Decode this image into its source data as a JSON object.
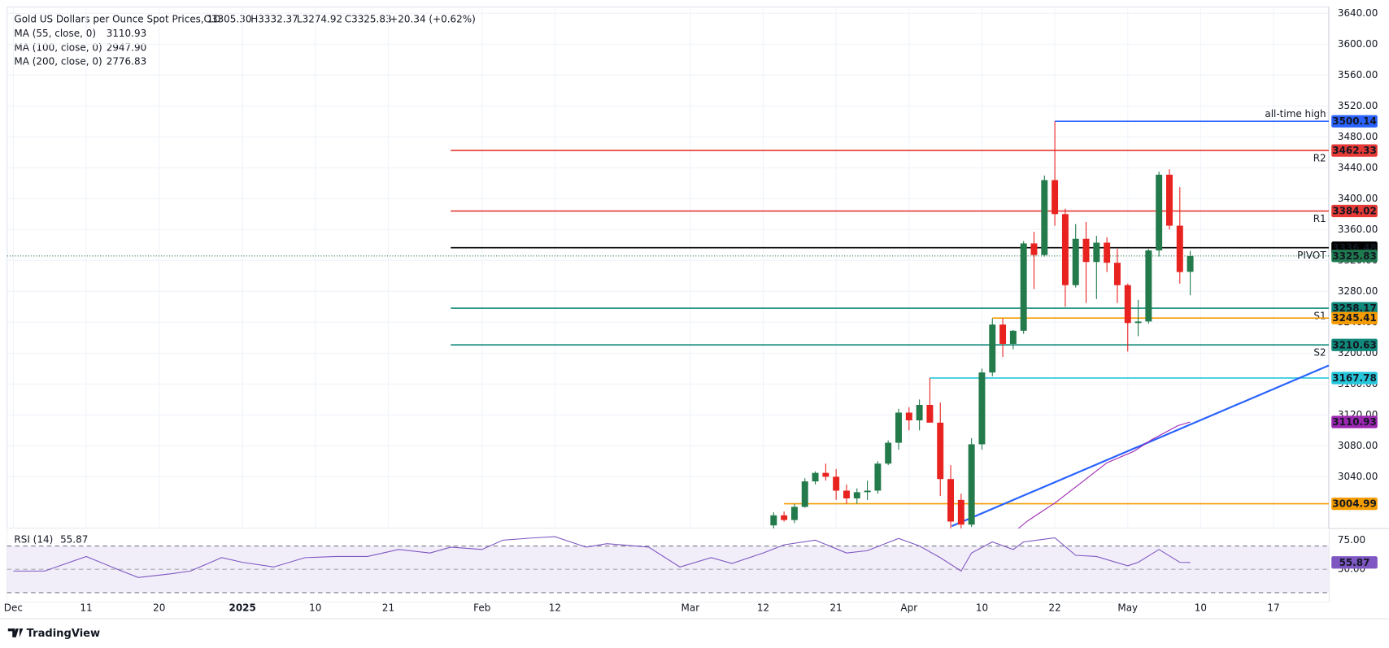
{
  "chart_data": {
    "type": "candlestick",
    "title": "Gold US Dollars per Ounce Spot Prices, 1D",
    "header_stats": [
      "O3305.30",
      "H3332.37",
      "L3274.92",
      "C3325.83",
      "+20.34 (+0.62%)"
    ],
    "xlim": [
      -0.6,
      126.3
    ],
    "ylim": [
      2973,
      3648
    ],
    "grid": true,
    "up_color": "#237a4b",
    "down_color": "#e8221f",
    "x": [
      73,
      74,
      75,
      76,
      77,
      78,
      79,
      80,
      81,
      82,
      83,
      84,
      85,
      86,
      87,
      88,
      89,
      90,
      91,
      92,
      93,
      94,
      95,
      96,
      97,
      98,
      99,
      100,
      101,
      102,
      103,
      104,
      105,
      106,
      107,
      108,
      109,
      110,
      111,
      112,
      113
    ],
    "open": [
      2977,
      2990,
      2984,
      3001,
      3034,
      3045,
      3040,
      3022,
      3012,
      3020,
      3022,
      3057,
      3084,
      3123,
      3113,
      3133,
      3110,
      3037,
      3010,
      2978,
      3082,
      3175,
      3237,
      3212,
      3229,
      3342,
      3327,
      3424,
      3380,
      3288,
      3348,
      3318,
      3343,
      3317,
      3288,
      3239,
      3241,
      3333,
      3431,
      3365,
      3305.3
    ],
    "high": [
      2994,
      2995,
      3005,
      3038,
      3047,
      3057,
      3050,
      3030,
      3025,
      3035,
      3060,
      3087,
      3128,
      3130,
      3140,
      3168,
      3136,
      3055,
      3018,
      3090,
      3180,
      3245,
      3245,
      3230,
      3345,
      3357,
      3430,
      3500.14,
      3387,
      3367,
      3370,
      3352,
      3350,
      3335,
      3290,
      3269,
      3335,
      3435,
      3438,
      3415,
      3332.37
    ],
    "low": [
      2973,
      2982,
      2980,
      3000,
      3030,
      3035,
      3010,
      3005,
      3005,
      3010,
      3018,
      3055,
      3075,
      3100,
      3100,
      3115,
      3015,
      2970,
      2957,
      2975,
      3075,
      3170,
      3195,
      3205,
      3225,
      3283,
      3325,
      3365,
      3260,
      3285,
      3265,
      3270,
      3305,
      3265,
      3202,
      3222,
      3238,
      3325,
      3360,
      3290,
      3274.92
    ],
    "close": [
      2990,
      2984,
      3001,
      3034,
      3045,
      3040,
      3022,
      3012,
      3020,
      3022,
      3057,
      3084,
      3123,
      3113,
      3133,
      3110,
      3037,
      2982,
      2978,
      3082,
      3175,
      3237,
      3212,
      3229,
      3342,
      3327,
      3424,
      3380,
      3288,
      3348,
      3318,
      3343,
      3317,
      3288,
      3239,
      3241,
      3333,
      3431,
      3365,
      3305,
      3325.83
    ],
    "yticks": [
      {
        "value": 3040,
        "label": "3040.00"
      },
      {
        "value": 3080,
        "label": "3080.00"
      },
      {
        "value": 3120,
        "label": "3120.00"
      },
      {
        "value": 3160,
        "label": "3160.00"
      },
      {
        "value": 3200,
        "label": "3200.00"
      },
      {
        "value": 3240,
        "label": "3240.00"
      },
      {
        "value": 3280,
        "label": "3280.00"
      },
      {
        "value": 3320,
        "label": "3320.00"
      },
      {
        "value": 3360,
        "label": "3360.00"
      },
      {
        "value": 3400,
        "label": "3400.00"
      },
      {
        "value": 3440,
        "label": "3440.00"
      },
      {
        "value": 3480,
        "label": "3480.00"
      },
      {
        "value": 3520,
        "label": "3520.00"
      },
      {
        "value": 3560,
        "label": "3560.00"
      },
      {
        "value": 3600,
        "label": "3600.00"
      },
      {
        "value": 3640,
        "label": "3640.00"
      }
    ],
    "xticks": [
      {
        "value": 0,
        "label": "Dec"
      },
      {
        "value": 7,
        "label": "11"
      },
      {
        "value": 14,
        "label": "20"
      },
      {
        "value": 22,
        "label": "2025"
      },
      {
        "value": 29,
        "label": "10"
      },
      {
        "value": 36,
        "label": "21"
      },
      {
        "value": 45,
        "label": "Feb"
      },
      {
        "value": 52,
        "label": "12"
      },
      {
        "value": 65,
        "label": "Mar"
      },
      {
        "value": 72,
        "label": "12"
      },
      {
        "value": 79,
        "label": "21"
      },
      {
        "value": 86,
        "label": "Apr"
      },
      {
        "value": 93,
        "label": "10"
      },
      {
        "value": 100,
        "label": "22"
      },
      {
        "value": 107,
        "label": "May"
      },
      {
        "value": 114,
        "label": "10"
      },
      {
        "value": 121,
        "label": "17"
      }
    ],
    "last_price": 3325.83,
    "last_price_color": "#1f7a4f",
    "levels": [
      {
        "label": "all-time high",
        "value": 3500.14,
        "color": "#2962ff",
        "start": 100
      },
      {
        "label": "R2",
        "value": 3462.33,
        "color": "#e53935",
        "start": 42
      },
      {
        "label": "R1",
        "value": 3384.02,
        "color": "#e53935",
        "start": 42
      },
      {
        "label": "PIVOT",
        "value": 3336.48,
        "color": "#000000",
        "start": 42
      },
      {
        "label": "S1",
        "value": 3258.17,
        "color": "#11897a",
        "start": 42
      },
      {
        "value": 3245.41,
        "color": "#f59c00",
        "start": 94
      },
      {
        "label": "S2",
        "value": 3210.63,
        "color": "#11897a",
        "start": 42
      },
      {
        "value": 3167.78,
        "color": "#26c6da",
        "start": 88
      },
      {
        "value": 3004.99,
        "color": "#f59c00",
        "start": 74
      }
    ],
    "trendline": {
      "color": "#2962ff",
      "x": [
        90.1,
        126.3
      ],
      "values": [
        2976,
        3184
      ]
    },
    "moving_averages": [
      {
        "name": "MA (55, close, 0)",
        "value": 3110.93,
        "color": "#9c27b0",
        "x": [
          96.5,
          97.4,
          100,
          102.6,
          105,
          107.6,
          109.3,
          111.8,
          113
        ],
        "values": [
          2973,
          2983,
          3006,
          3033,
          3058,
          3073,
          3088,
          3106,
          3110.93
        ]
      },
      {
        "name": "MA (100, close, 0)",
        "value": 2947.9,
        "value_label": "2947.90",
        "color": "#e91e63"
      },
      {
        "name": "MA (200, close, 0)",
        "value": 2776.83,
        "color": "#f39c12"
      }
    ],
    "rsi": {
      "name": "RSI (14)",
      "value": 55.87,
      "color": "#7e57c2",
      "ylim": [
        22,
        85
      ],
      "yticks": [
        {
          "value": 75,
          "label": "75.00"
        },
        {
          "value": 50,
          "label": "50.00"
        }
      ],
      "band": [
        30,
        70
      ],
      "midline": 50,
      "x": [
        0,
        3,
        7,
        10,
        12,
        15,
        17,
        20,
        22,
        25,
        28,
        31,
        34,
        37,
        40,
        42,
        45,
        47,
        50,
        52,
        55,
        57,
        61,
        64,
        67,
        69,
        72,
        74,
        77,
        80,
        82,
        85,
        87,
        89,
        91,
        92,
        94,
        96,
        97,
        100,
        102,
        104,
        107,
        108,
        110,
        112,
        113
      ],
      "values": [
        48.5,
        48.5,
        61,
        50,
        43,
        46,
        48.5,
        60,
        56,
        52,
        60,
        61,
        61,
        67,
        64,
        69,
        67,
        75,
        77,
        78,
        69,
        72,
        69,
        52,
        60,
        55,
        64,
        71,
        75,
        64,
        66,
        76.5,
        70,
        60,
        48.5,
        64,
        73.5,
        67,
        73.5,
        77,
        62,
        61,
        53,
        56,
        67,
        56,
        55.87
      ]
    },
    "brand": "TradingView"
  }
}
